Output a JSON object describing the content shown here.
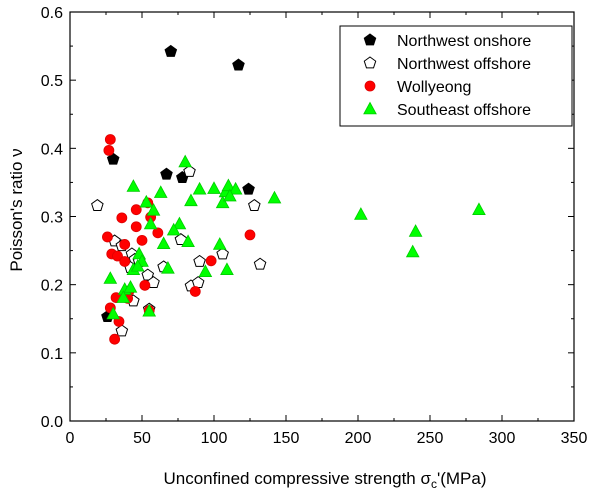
{
  "chart_data": {
    "type": "scatter",
    "xlabel": "Unconfined compressive strength σc'(MPa)",
    "xlabel_main": "Unconfined compressive strength σ",
    "xlabel_sub": "c",
    "xlabel_tail": "'(MPa)",
    "ylabel": "Poisson's ratio ν",
    "xlim": [
      0,
      350
    ],
    "ylim": [
      0.0,
      0.6
    ],
    "xticks": [
      0,
      50,
      100,
      150,
      200,
      250,
      300,
      350
    ],
    "yticks": [
      0.0,
      0.1,
      0.2,
      0.3,
      0.4,
      0.5,
      0.6
    ],
    "xtick_labels": [
      "0",
      "50",
      "100",
      "150",
      "200",
      "250",
      "300",
      "350"
    ],
    "ytick_labels": [
      "0.0",
      "0.1",
      "0.2",
      "0.3",
      "0.4",
      "0.5",
      "0.6"
    ],
    "grid": false,
    "legend_position": "top-right",
    "series": [
      {
        "name": "Northwest onshore",
        "marker": "pentagon",
        "fill": "#000000",
        "stroke": "#000000",
        "points": [
          [
            70,
            0.542
          ],
          [
            117,
            0.522
          ],
          [
            30,
            0.384
          ],
          [
            67,
            0.362
          ],
          [
            78,
            0.357
          ],
          [
            124,
            0.34
          ],
          [
            26,
            0.153
          ]
        ]
      },
      {
        "name": "Northwest offshore",
        "marker": "pentagon",
        "fill": "#ffffff",
        "stroke": "#000000",
        "points": [
          [
            19,
            0.316
          ],
          [
            31,
            0.264
          ],
          [
            36,
            0.257
          ],
          [
            43,
            0.245
          ],
          [
            45,
            0.237
          ],
          [
            48,
            0.234
          ],
          [
            42,
            0.225
          ],
          [
            54,
            0.214
          ],
          [
            58,
            0.203
          ],
          [
            65,
            0.226
          ],
          [
            83,
            0.366
          ],
          [
            77,
            0.266
          ],
          [
            90,
            0.234
          ],
          [
            106,
            0.245
          ],
          [
            128,
            0.316
          ],
          [
            132,
            0.23
          ],
          [
            84,
            0.198
          ],
          [
            89,
            0.203
          ],
          [
            44,
            0.176
          ],
          [
            36,
            0.132
          ],
          [
            55,
            0.164
          ]
        ]
      },
      {
        "name": "Wollyeong",
        "marker": "circle",
        "fill": "#ff0000",
        "stroke": "#dd0000",
        "points": [
          [
            28,
            0.413
          ],
          [
            27,
            0.397
          ],
          [
            36,
            0.298
          ],
          [
            38,
            0.259
          ],
          [
            26,
            0.27
          ],
          [
            29,
            0.245
          ],
          [
            33,
            0.242
          ],
          [
            38,
            0.234
          ],
          [
            46,
            0.31
          ],
          [
            46,
            0.285
          ],
          [
            50,
            0.265
          ],
          [
            54,
            0.32
          ],
          [
            56,
            0.299
          ],
          [
            61,
            0.276
          ],
          [
            98,
            0.235
          ],
          [
            87,
            0.19
          ],
          [
            125,
            0.273
          ],
          [
            52,
            0.199
          ],
          [
            41,
            0.191
          ],
          [
            40,
            0.18
          ],
          [
            32,
            0.181
          ],
          [
            28,
            0.166
          ],
          [
            34,
            0.146
          ],
          [
            31,
            0.12
          ],
          [
            55,
            0.162
          ]
        ]
      },
      {
        "name": "Southeast offshore",
        "marker": "triangle",
        "fill": "#00ff00",
        "stroke": "#00cc00",
        "points": [
          [
            80,
            0.38
          ],
          [
            44,
            0.344
          ],
          [
            53,
            0.321
          ],
          [
            63,
            0.335
          ],
          [
            58,
            0.309
          ],
          [
            76,
            0.289
          ],
          [
            72,
            0.28
          ],
          [
            65,
            0.26
          ],
          [
            56,
            0.289
          ],
          [
            68,
            0.224
          ],
          [
            84,
            0.323
          ],
          [
            90,
            0.34
          ],
          [
            100,
            0.341
          ],
          [
            108,
            0.336
          ],
          [
            110,
            0.345
          ],
          [
            115,
            0.34
          ],
          [
            106,
            0.32
          ],
          [
            111,
            0.33
          ],
          [
            142,
            0.327
          ],
          [
            202,
            0.303
          ],
          [
            240,
            0.278
          ],
          [
            238,
            0.248
          ],
          [
            284,
            0.31
          ],
          [
            104,
            0.259
          ],
          [
            82,
            0.263
          ],
          [
            94,
            0.219
          ],
          [
            109,
            0.222
          ],
          [
            48,
            0.245
          ],
          [
            50,
            0.234
          ],
          [
            44,
            0.222
          ],
          [
            47,
            0.227
          ],
          [
            38,
            0.193
          ],
          [
            42,
            0.196
          ],
          [
            37,
            0.181
          ],
          [
            28,
            0.209
          ],
          [
            30,
            0.157
          ],
          [
            55,
            0.161
          ]
        ]
      }
    ]
  }
}
